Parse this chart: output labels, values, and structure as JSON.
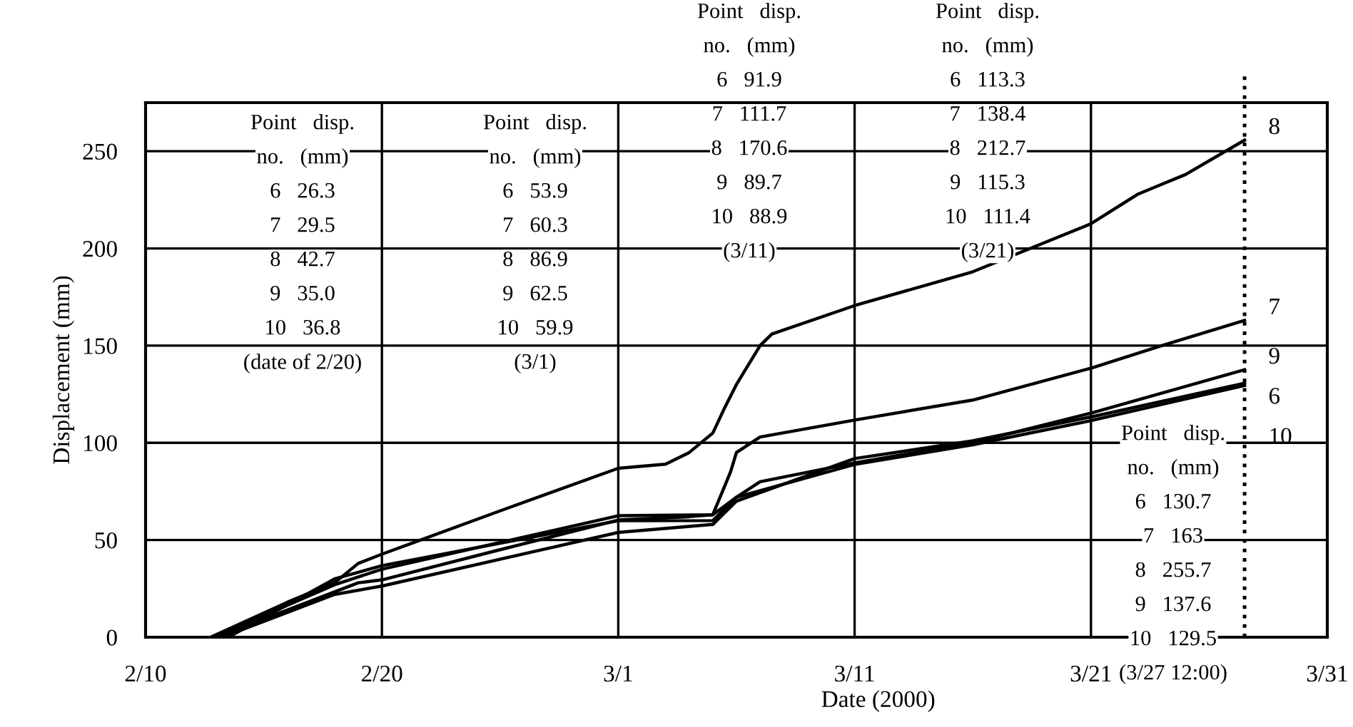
{
  "chart_data": {
    "type": "line",
    "xlabel": "Date (2000)",
    "ylabel": "Displacement (mm)",
    "xlim": [
      "2000-02-10",
      "2000-03-31"
    ],
    "xticks": [
      {
        "value": "2000-02-10",
        "label": "2/10"
      },
      {
        "value": "2000-02-20",
        "label": "2/20"
      },
      {
        "value": "2000-03-01",
        "label": "3/1"
      },
      {
        "value": "2000-03-11",
        "label": "3/11"
      },
      {
        "value": "2000-03-21",
        "label": "3/21"
      },
      {
        "value": "2000-03-31",
        "label": "3/31"
      }
    ],
    "ylim": [
      0,
      275
    ],
    "yticks": [
      0,
      50,
      100,
      150,
      200,
      250
    ],
    "grid": true,
    "marker": "none",
    "line_style": "solid",
    "ref_lines": [
      {
        "axis": "x",
        "value": "2000-03-27T12:00",
        "color": "#000000",
        "line_style": "dotted"
      }
    ],
    "series": [
      {
        "name": "8",
        "color": "#000000",
        "x": [
          "2000-02-12T18:00",
          "2000-02-16",
          "2000-02-18",
          "2000-02-19",
          "2000-02-20",
          "2000-02-25",
          "2000-03-01",
          "2000-03-03",
          "2000-03-04",
          "2000-03-05",
          "2000-03-05T12:00",
          "2000-03-06",
          "2000-03-06T12:00",
          "2000-03-07",
          "2000-03-07T12:00",
          "2000-03-11",
          "2000-03-16",
          "2000-03-21",
          "2000-03-23",
          "2000-03-24",
          "2000-03-25",
          "2000-03-27T12:00"
        ],
        "values": [
          0,
          18,
          28,
          38,
          42.7,
          65,
          86.9,
          89,
          95,
          105,
          118,
          130,
          140,
          150,
          156,
          170.6,
          188,
          212.7,
          228,
          233,
          238,
          255.7
        ]
      },
      {
        "name": "7",
        "color": "#000000",
        "x": [
          "2000-02-13",
          "2000-02-19",
          "2000-02-20",
          "2000-02-25",
          "2000-03-01",
          "2000-03-04",
          "2000-03-05",
          "2000-03-05T18:00",
          "2000-03-06",
          "2000-03-07",
          "2000-03-11",
          "2000-03-16",
          "2000-03-21",
          "2000-03-24",
          "2000-03-27T12:00"
        ],
        "values": [
          0,
          28,
          29.5,
          45,
          60.3,
          62,
          63,
          85,
          95,
          103,
          111.7,
          122,
          138.4,
          150,
          163
        ]
      },
      {
        "name": "9",
        "color": "#000000",
        "x": [
          "2000-02-12T21:00",
          "2000-02-18",
          "2000-02-20",
          "2000-03-01",
          "2000-03-05",
          "2000-03-06",
          "2000-03-07",
          "2000-03-11",
          "2000-03-16",
          "2000-03-21",
          "2000-03-27T12:00"
        ],
        "values": [
          0,
          27,
          35.0,
          62.5,
          63,
          72,
          80,
          89.7,
          100,
          115.3,
          137.6
        ]
      },
      {
        "name": "6",
        "color": "#000000",
        "x": [
          "2000-02-13T06:00",
          "2000-02-18",
          "2000-02-20",
          "2000-03-01",
          "2000-03-05",
          "2000-03-06",
          "2000-03-11",
          "2000-03-16",
          "2000-03-21",
          "2000-03-27T12:00"
        ],
        "values": [
          0,
          22,
          26.3,
          53.9,
          58,
          70,
          91.9,
          101,
          113.3,
          130.7
        ]
      },
      {
        "name": "10",
        "color": "#000000",
        "x": [
          "2000-02-13T12:00",
          "2000-02-18",
          "2000-02-20",
          "2000-03-01",
          "2000-03-05",
          "2000-03-06",
          "2000-03-11",
          "2000-03-16",
          "2000-03-21",
          "2000-03-27T12:00"
        ],
        "values": [
          0,
          30,
          36.8,
          59.9,
          60,
          72,
          88.9,
          99,
          111.4,
          129.5
        ]
      }
    ],
    "annotations": [
      "Point   disp.\nno.   (mm)\n6   26.3\n7   29.5\n8   42.7\n9   35.0\n10   36.8\n(date of 2/20)",
      "Point   disp.\nno.   (mm)\n6   53.9\n7   60.3\n8   86.9\n9   62.5\n10   59.9\n(3/1)",
      "Point   disp.\nno.   (mm)\n6   91.9\n7   111.7\n8   170.6\n9   89.7\n10   88.9\n(3/11)",
      "Point   disp.\nno.   (mm)\n6   113.3\n7   138.4\n8   212.7\n9   115.3\n10   111.4\n(3/21)",
      "Point   disp.\nno.   (mm)\n6   130.7\n7   163\n8   255.7\n9   137.6\n10   129.5\n(3/27 12:00)"
    ]
  }
}
